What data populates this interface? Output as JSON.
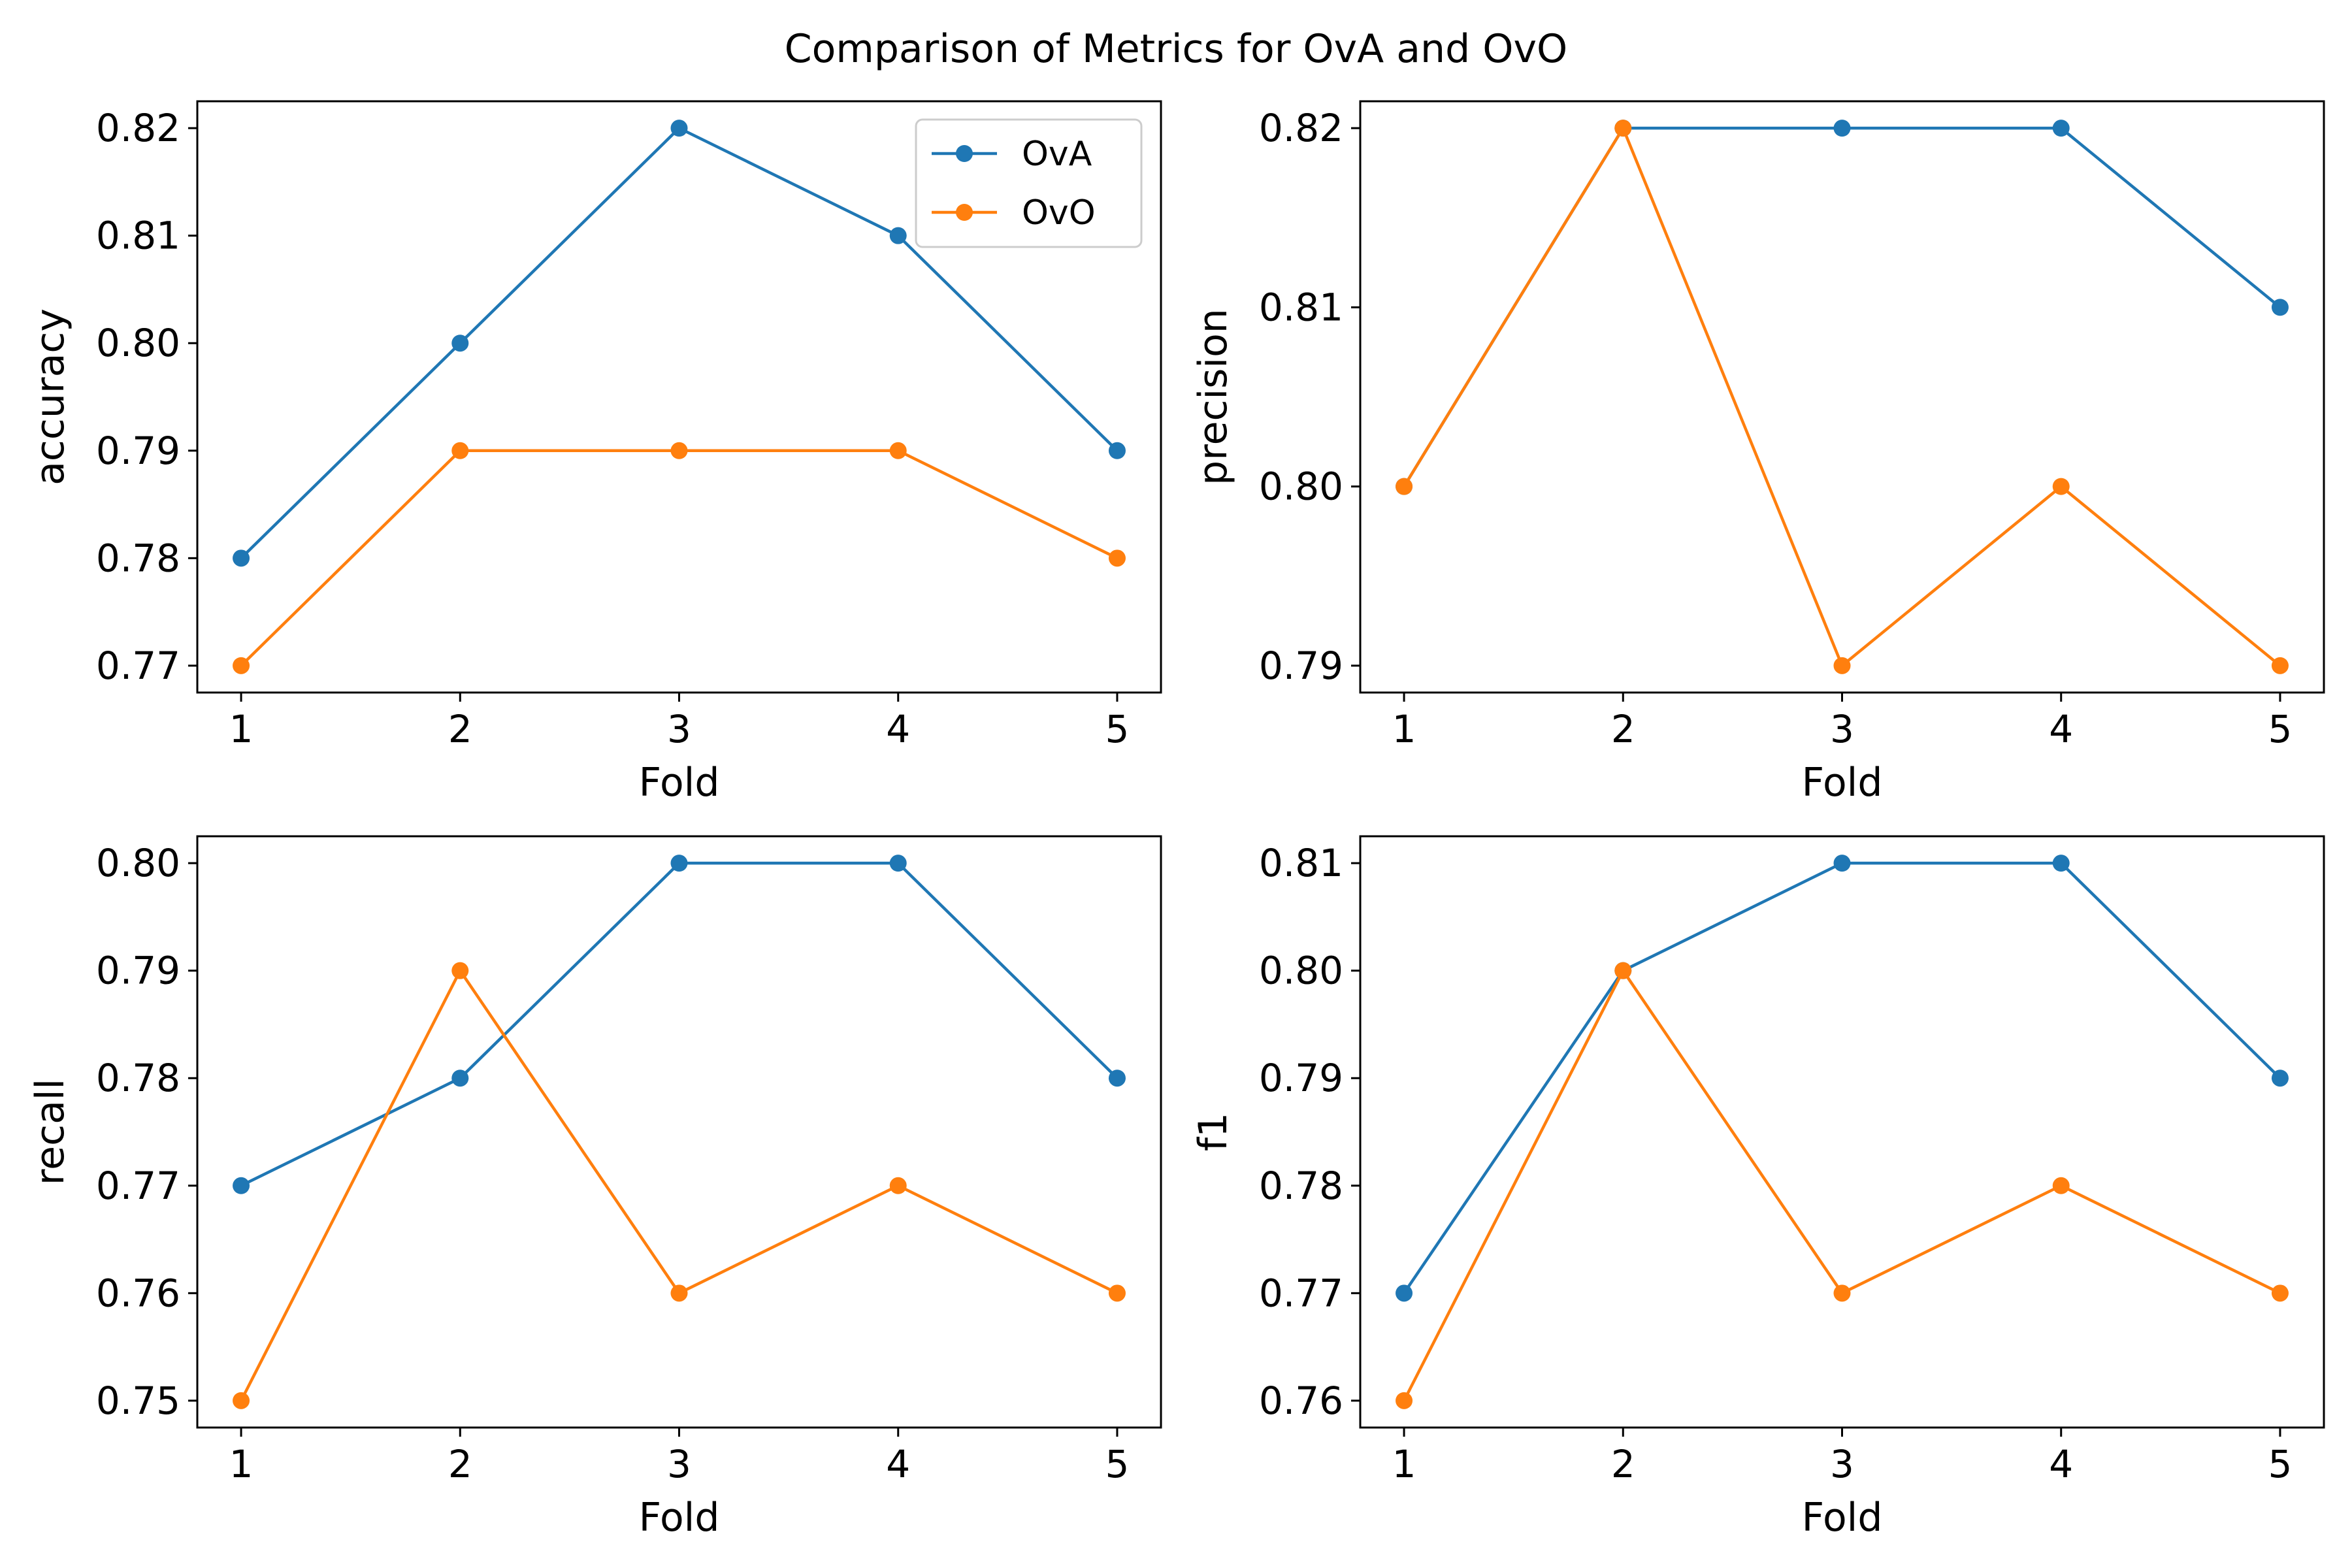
{
  "figure": {
    "suptitle": "Comparison of Metrics for OvA and OvO"
  },
  "colors": {
    "OvA": "#1f77b4",
    "OvO": "#ff7f0e"
  },
  "chart_data": [
    {
      "type": "line",
      "position": "top-left",
      "title": "",
      "xlabel": "Fold",
      "ylabel": "accuracy",
      "x": [
        1,
        2,
        3,
        4,
        5
      ],
      "xticks": [
        "1",
        "2",
        "3",
        "4",
        "5"
      ],
      "xlim": [
        0.8,
        5.2
      ],
      "yticks": [
        "0.77",
        "0.78",
        "0.79",
        "0.80",
        "0.81",
        "0.82"
      ],
      "ytick_values": [
        0.77,
        0.78,
        0.79,
        0.8,
        0.81,
        0.82
      ],
      "ylim": [
        0.7675,
        0.8225
      ],
      "grid": false,
      "legend": {
        "placement": "top-right",
        "entries": [
          "OvA",
          "OvO"
        ]
      },
      "series": [
        {
          "name": "OvA",
          "values": [
            0.78,
            0.8,
            0.82,
            0.81,
            0.79
          ]
        },
        {
          "name": "OvO",
          "values": [
            0.77,
            0.79,
            0.79,
            0.79,
            0.78
          ]
        }
      ]
    },
    {
      "type": "line",
      "position": "top-right",
      "title": "",
      "xlabel": "Fold",
      "ylabel": "precision",
      "x": [
        1,
        2,
        3,
        4,
        5
      ],
      "xticks": [
        "1",
        "2",
        "3",
        "4",
        "5"
      ],
      "xlim": [
        0.8,
        5.2
      ],
      "yticks": [
        "0.79",
        "0.80",
        "0.81",
        "0.82"
      ],
      "ytick_values": [
        0.79,
        0.8,
        0.81,
        0.82
      ],
      "ylim": [
        0.7885,
        0.8215
      ],
      "grid": false,
      "legend": null,
      "series": [
        {
          "name": "OvA",
          "values": [
            0.8,
            0.82,
            0.82,
            0.82,
            0.81
          ]
        },
        {
          "name": "OvO",
          "values": [
            0.8,
            0.82,
            0.79,
            0.8,
            0.79
          ]
        }
      ]
    },
    {
      "type": "line",
      "position": "bottom-left",
      "title": "",
      "xlabel": "Fold",
      "ylabel": "recall",
      "x": [
        1,
        2,
        3,
        4,
        5
      ],
      "xticks": [
        "1",
        "2",
        "3",
        "4",
        "5"
      ],
      "xlim": [
        0.8,
        5.2
      ],
      "yticks": [
        "0.75",
        "0.76",
        "0.77",
        "0.78",
        "0.79",
        "0.80"
      ],
      "ytick_values": [
        0.75,
        0.76,
        0.77,
        0.78,
        0.79,
        0.8
      ],
      "ylim": [
        0.7475,
        0.8025
      ],
      "grid": false,
      "legend": null,
      "series": [
        {
          "name": "OvA",
          "values": [
            0.77,
            0.78,
            0.8,
            0.8,
            0.78
          ]
        },
        {
          "name": "OvO",
          "values": [
            0.75,
            0.79,
            0.76,
            0.77,
            0.76
          ]
        }
      ]
    },
    {
      "type": "line",
      "position": "bottom-right",
      "title": "",
      "xlabel": "Fold",
      "ylabel": "f1",
      "x": [
        1,
        2,
        3,
        4,
        5
      ],
      "xticks": [
        "1",
        "2",
        "3",
        "4",
        "5"
      ],
      "xlim": [
        0.8,
        5.2
      ],
      "yticks": [
        "0.76",
        "0.77",
        "0.78",
        "0.79",
        "0.80",
        "0.81"
      ],
      "ytick_values": [
        0.76,
        0.77,
        0.78,
        0.79,
        0.8,
        0.81
      ],
      "ylim": [
        0.7575,
        0.8125
      ],
      "grid": false,
      "legend": null,
      "series": [
        {
          "name": "OvA",
          "values": [
            0.77,
            0.8,
            0.81,
            0.81,
            0.79
          ]
        },
        {
          "name": "OvO",
          "values": [
            0.76,
            0.8,
            0.77,
            0.78,
            0.77
          ]
        }
      ]
    }
  ]
}
